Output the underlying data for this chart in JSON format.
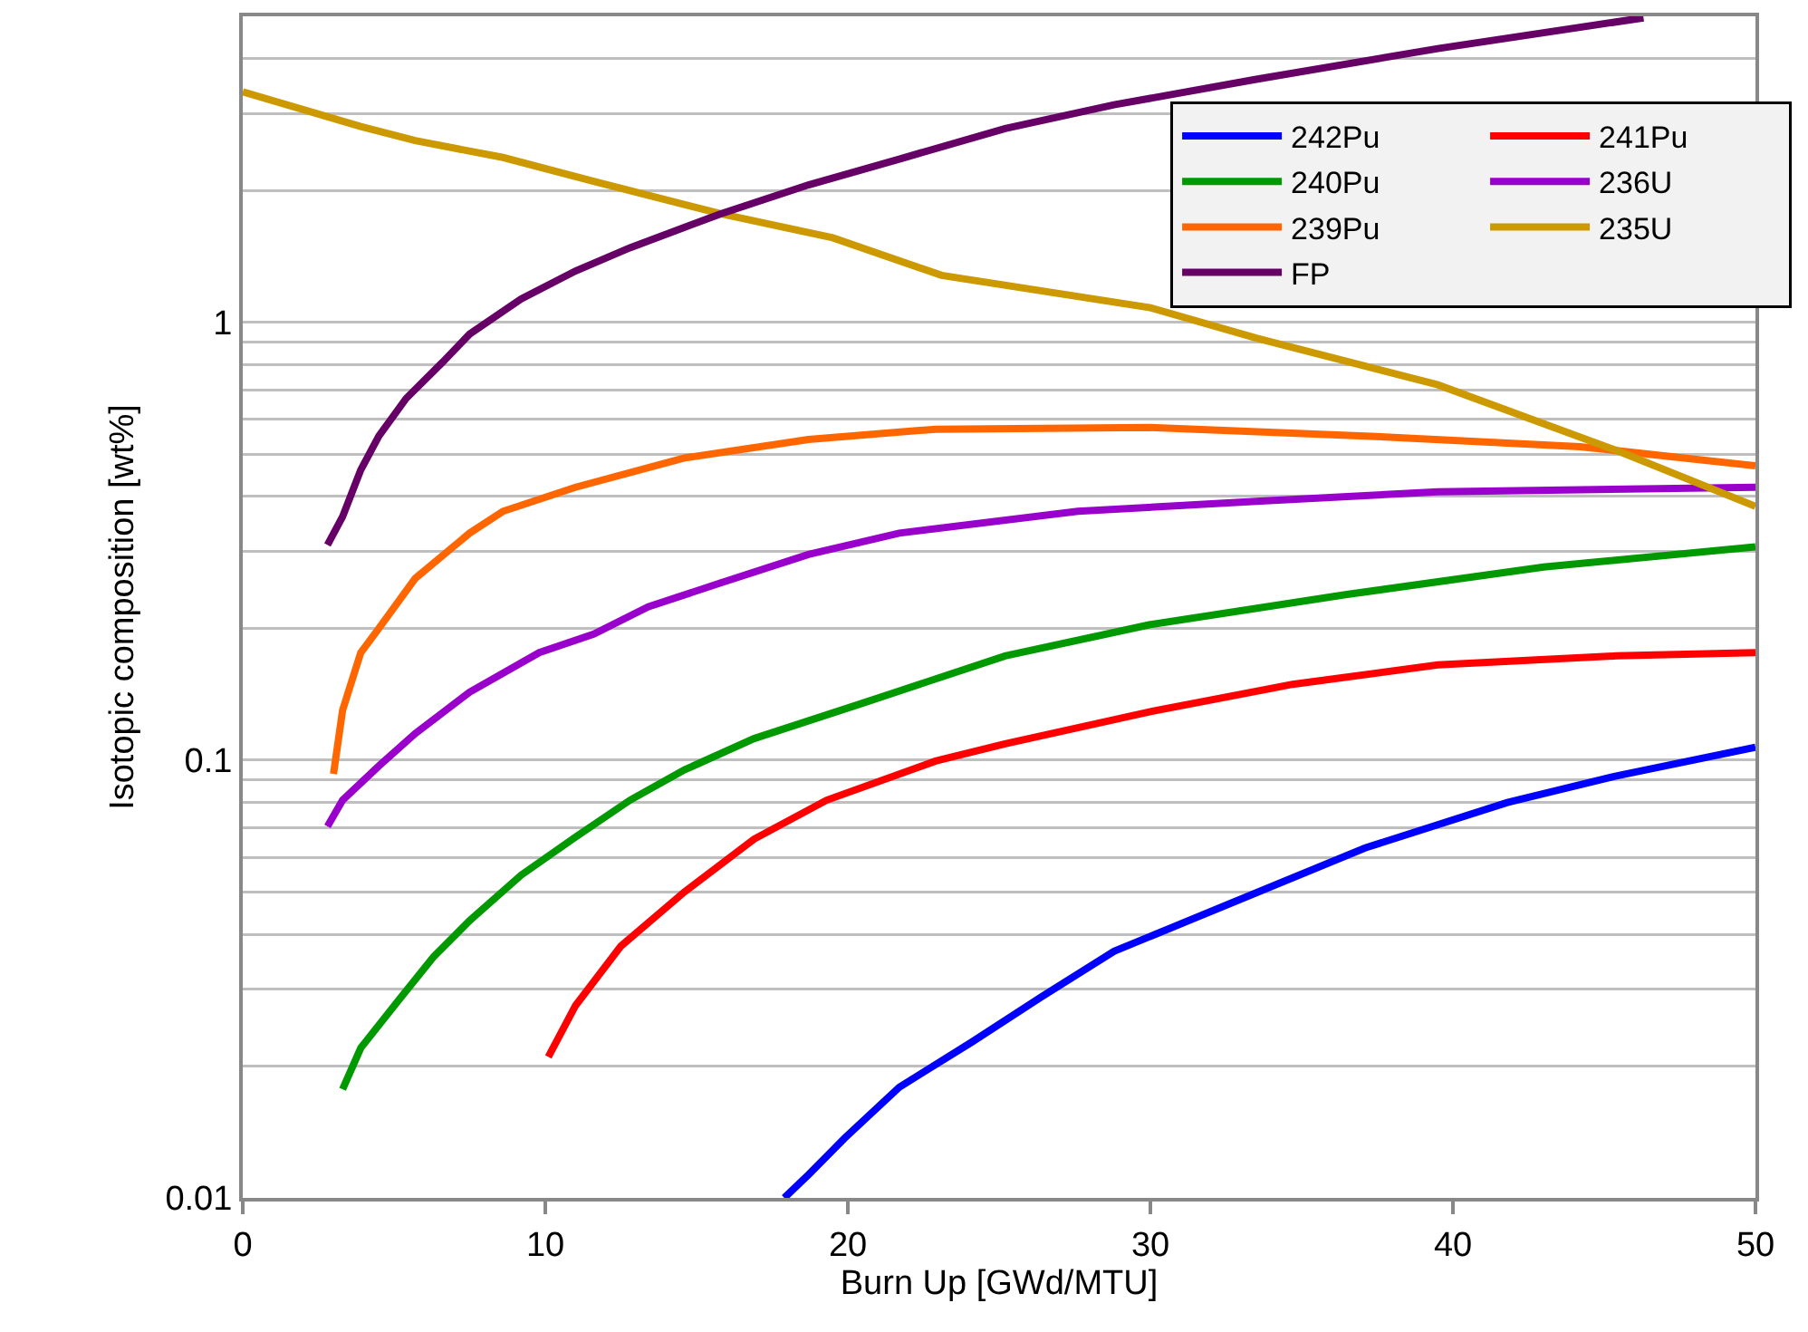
{
  "chart_data": {
    "type": "line",
    "xlabel": "Burn Up [GWd/MTU]",
    "ylabel": "Isotopic composition [wt%]",
    "log": "y",
    "grid": "y",
    "legend": "top right",
    "line_style": "solid",
    "marker": "none",
    "xlim": [
      0,
      50
    ],
    "xticks": [
      0,
      10,
      20,
      30,
      40,
      50
    ],
    "ylim": [
      0.01,
      5
    ],
    "yticks": [
      0.01,
      {
        "value": 0.02,
        "label": null
      },
      {
        "value": 0.03,
        "label": null
      },
      {
        "value": 0.04,
        "label": null
      },
      {
        "value": 0.05,
        "label": null
      },
      {
        "value": 0.06,
        "label": null
      },
      {
        "value": 0.07,
        "label": null
      },
      {
        "value": 0.08,
        "label": null
      },
      {
        "value": 0.09,
        "label": null
      },
      0.1,
      {
        "value": 0.2,
        "label": null
      },
      {
        "value": 0.3,
        "label": null
      },
      {
        "value": 0.4,
        "label": null
      },
      {
        "value": 0.5,
        "label": null
      },
      {
        "value": 0.6,
        "label": null
      },
      {
        "value": 0.7,
        "label": null
      },
      {
        "value": 0.8,
        "label": null
      },
      {
        "value": 0.9,
        "label": null
      },
      1,
      {
        "value": 2,
        "label": null
      },
      {
        "value": 3,
        "label": null
      },
      {
        "value": 4,
        "label": null
      },
      {
        "value": 5,
        "label": null
      }
    ],
    "series": [
      {
        "name": "242Pu",
        "color": "#0000ff",
        "x": [
          17.9,
          18.7,
          19.9,
          21.7,
          24.1,
          26.4,
          28.8,
          32.3,
          37.1,
          41.8,
          45.4,
          50
        ],
        "values": [
          0.01,
          0.0113,
          0.0137,
          0.0179,
          0.0227,
          0.0288,
          0.0366,
          0.046,
          0.063,
          0.08,
          0.092,
          0.107
        ]
      },
      {
        "name": "241Pu",
        "color": "#ff0000",
        "x": [
          10.1,
          11,
          12.5,
          14.6,
          16.9,
          19.3,
          22.9,
          25.2,
          30,
          34.7,
          39.5,
          45.4,
          50
        ],
        "values": [
          0.021,
          0.0275,
          0.0376,
          0.05,
          0.066,
          0.081,
          0.0995,
          0.109,
          0.129,
          0.149,
          0.165,
          0.173,
          0.176
        ]
      },
      {
        "name": "240Pu",
        "color": "#009900",
        "x": [
          3.3,
          3.9,
          5.1,
          6.3,
          7.5,
          9.2,
          11,
          12.8,
          14.6,
          16.9,
          20.5,
          25.2,
          30,
          36.5,
          43,
          50
        ],
        "values": [
          0.0177,
          0.022,
          0.028,
          0.0355,
          0.043,
          0.0546,
          0.0667,
          0.081,
          0.095,
          0.112,
          0.135,
          0.173,
          0.204,
          0.239,
          0.276,
          0.307
        ]
      },
      {
        "name": "236U",
        "color": "#9900cc",
        "x": [
          2.8,
          3.3,
          4.5,
          5.7,
          7.5,
          9.8,
          11.6,
          13.4,
          15.8,
          18.7,
          21.7,
          27.6,
          33.5,
          39.5,
          50
        ],
        "values": [
          0.0706,
          0.081,
          0.097,
          0.115,
          0.143,
          0.176,
          0.194,
          0.224,
          0.254,
          0.295,
          0.33,
          0.37,
          0.39,
          0.41,
          0.42
        ]
      },
      {
        "name": "239Pu",
        "color": "#ff6600",
        "x": [
          3,
          3.3,
          3.9,
          4.5,
          5.7,
          7.5,
          8.6,
          11,
          14.6,
          18.7,
          22.9,
          30,
          37.1,
          44.2,
          50
        ],
        "values": [
          0.093,
          0.13,
          0.176,
          0.2,
          0.26,
          0.33,
          0.37,
          0.42,
          0.49,
          0.54,
          0.57,
          0.575,
          0.55,
          0.52,
          0.47
        ]
      },
      {
        "name": "235U",
        "color": "#cc9900",
        "x": [
          0,
          3.9,
          5.7,
          8.6,
          11.6,
          15.8,
          19.5,
          23.1,
          30,
          33.5,
          39.5,
          45.4,
          50
        ],
        "values": [
          3.36,
          2.8,
          2.6,
          2.38,
          2.1,
          1.77,
          1.56,
          1.28,
          1.08,
          0.92,
          0.72,
          0.51,
          0.38
        ]
      },
      {
        "name": "FP",
        "color": "#660066",
        "x": [
          2.8,
          3.3,
          3.9,
          4.5,
          5.4,
          6.6,
          7.5,
          9.2,
          11,
          12.8,
          15.8,
          18.7,
          21.7,
          25.2,
          28.8,
          33.5,
          39.5,
          46.3
        ],
        "values": [
          0.31,
          0.36,
          0.46,
          0.55,
          0.67,
          0.81,
          0.94,
          1.13,
          1.31,
          1.48,
          1.77,
          2.06,
          2.36,
          2.77,
          3.14,
          3.59,
          4.22,
          4.96
        ]
      }
    ]
  }
}
